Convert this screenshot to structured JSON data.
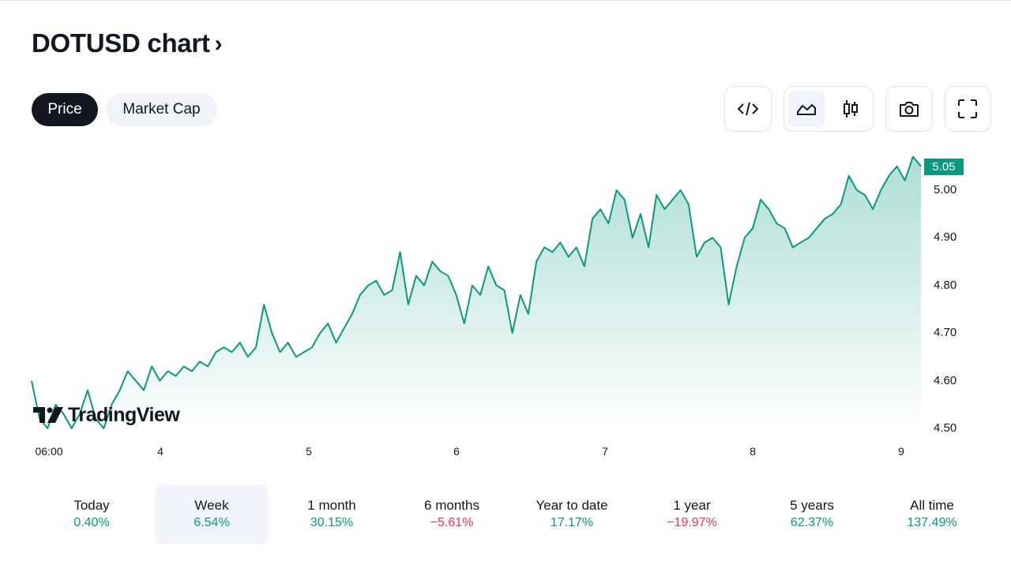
{
  "header": {
    "title": "DOTUSD chart",
    "chevron": "›"
  },
  "tabs": [
    {
      "label": "Price",
      "active": true
    },
    {
      "label": "Market Cap",
      "active": false
    }
  ],
  "toolbar": {
    "icons": [
      "embed-code-icon",
      "area-chart-icon",
      "candlestick-icon",
      "camera-icon",
      "fullscreen-icon"
    ],
    "selected": "area-chart-icon"
  },
  "chart_data": {
    "type": "area",
    "symbol": "DOTUSD",
    "last_price": "5.05",
    "y_ticks": [
      "5.00",
      "4.90",
      "4.80",
      "4.70",
      "4.60",
      "4.50"
    ],
    "x_ticks": [
      "06:00",
      "4",
      "5",
      "6",
      "7",
      "8",
      "9"
    ],
    "ylim": [
      4.48,
      5.09
    ],
    "line_color": "#089981",
    "grid": false,
    "series": [
      {
        "values": [
          4.6,
          4.52,
          4.5,
          4.55,
          4.53,
          4.5,
          4.53,
          4.58,
          4.52,
          4.5,
          4.55,
          4.58,
          4.62,
          4.6,
          4.58,
          4.63,
          4.6,
          4.62,
          4.61,
          4.63,
          4.62,
          4.64,
          4.63,
          4.66,
          4.67,
          4.66,
          4.68,
          4.65,
          4.67,
          4.76,
          4.7,
          4.66,
          4.68,
          4.65,
          4.66,
          4.67,
          4.7,
          4.72,
          4.68,
          4.71,
          4.74,
          4.78,
          4.8,
          4.81,
          4.78,
          4.79,
          4.87,
          4.76,
          4.82,
          4.8,
          4.85,
          4.83,
          4.82,
          4.78,
          4.72,
          4.8,
          4.78,
          4.84,
          4.8,
          4.79,
          4.7,
          4.78,
          4.74,
          4.85,
          4.88,
          4.87,
          4.89,
          4.86,
          4.88,
          4.84,
          4.94,
          4.96,
          4.93,
          5.0,
          4.98,
          4.9,
          4.95,
          4.88,
          4.99,
          4.96,
          4.98,
          5.0,
          4.97,
          4.86,
          4.89,
          4.9,
          4.88,
          4.76,
          4.84,
          4.9,
          4.92,
          4.98,
          4.96,
          4.93,
          4.92,
          4.88,
          4.89,
          4.9,
          4.92,
          4.94,
          4.95,
          4.97,
          5.03,
          5.0,
          4.99,
          4.96,
          5.0,
          5.03,
          5.05,
          5.02,
          5.07,
          5.05
        ]
      }
    ]
  },
  "watermark": {
    "brand": "TradingView"
  },
  "periods": [
    {
      "label": "Today",
      "value": "0.40%",
      "dir": "pos"
    },
    {
      "label": "Week",
      "value": "6.54%",
      "dir": "pos",
      "selected": true
    },
    {
      "label": "1 month",
      "value": "30.15%",
      "dir": "pos"
    },
    {
      "label": "6 months",
      "value": "−5.61%",
      "dir": "neg"
    },
    {
      "label": "Year to date",
      "value": "17.17%",
      "dir": "pos"
    },
    {
      "label": "1 year",
      "value": "−19.97%",
      "dir": "neg"
    },
    {
      "label": "5 years",
      "value": "62.37%",
      "dir": "pos"
    },
    {
      "label": "All time",
      "value": "137.49%",
      "dir": "pos"
    }
  ]
}
